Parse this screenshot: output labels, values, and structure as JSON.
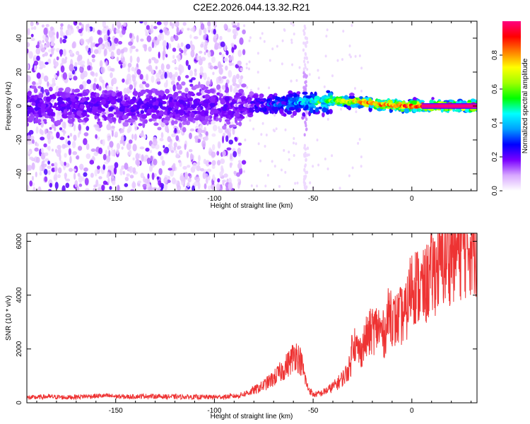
{
  "figure_title": "C2E2.2026.044.13.32.R21",
  "chart_data": [
    {
      "type": "heatmap",
      "id": "spectrogram",
      "xlabel": "Height of straight line (km)",
      "ylabel": "Frequency (Hz)",
      "xlim": [
        -195,
        33
      ],
      "ylim": [
        -50,
        50
      ],
      "xticks": [
        -150,
        -100,
        -50,
        0
      ],
      "yticks": [
        -40,
        -20,
        0,
        20,
        40
      ],
      "ridge": {
        "description_points_x": [
          -195,
          -150,
          -100,
          -85,
          -70,
          -55,
          -45,
          -35,
          -25,
          -15,
          -5,
          5,
          15,
          33
        ],
        "center_freq_hz": [
          0,
          0,
          0,
          0,
          1,
          2,
          3,
          3,
          2,
          1,
          0,
          0,
          0,
          0
        ],
        "noise_boundary_x": -85,
        "artifact_x": -54
      },
      "colorbar": {
        "label": "Normalized spectral amplitude",
        "range": [
          0.0,
          1.0
        ],
        "ticks": [
          0.0,
          0.2,
          0.4,
          0.6,
          0.8
        ],
        "tick_labels": [
          "0.0",
          "0.2",
          "0.4",
          "0.6",
          "0.8"
        ],
        "colormap": [
          "#ffffff",
          "#d8a8ff",
          "#7a00ff",
          "#0000ff",
          "#00a0ff",
          "#00ffff",
          "#00ff00",
          "#a0ff00",
          "#ffff00",
          "#ff8000",
          "#ff0000",
          "#ff0080"
        ]
      }
    },
    {
      "type": "line",
      "id": "snr",
      "xlabel": "Height of straight line (km)",
      "ylabel": "SNR (10 * v/v)",
      "xlim": [
        -195,
        33
      ],
      "ylim": [
        0,
        6300
      ],
      "xticks": [
        -150,
        -100,
        -50,
        0
      ],
      "yticks": [
        0,
        2000,
        4000,
        6000
      ],
      "line_color": "#ee3333",
      "x": [
        -195,
        -185,
        -175,
        -165,
        -155,
        -145,
        -135,
        -125,
        -115,
        -105,
        -95,
        -88,
        -82,
        -76,
        -70,
        -65,
        -62,
        -59,
        -56,
        -53,
        -50,
        -46,
        -42,
        -38,
        -34,
        -31,
        -30,
        -28,
        -26,
        -23,
        -20,
        -17,
        -14,
        -11,
        -9,
        -6,
        -3,
        0,
        3,
        6,
        10,
        15,
        20,
        25,
        30,
        33
      ],
      "values": [
        180,
        230,
        200,
        240,
        260,
        220,
        250,
        230,
        220,
        210,
        220,
        260,
        400,
        600,
        900,
        1250,
        1500,
        1850,
        1500,
        600,
        300,
        350,
        500,
        700,
        1000,
        1400,
        2500,
        2000,
        1900,
        2400,
        2700,
        2800,
        2500,
        3500,
        3000,
        3200,
        3300,
        4500,
        4300,
        4200,
        4800,
        5200,
        5600,
        5800,
        6000,
        6000
      ]
    }
  ]
}
